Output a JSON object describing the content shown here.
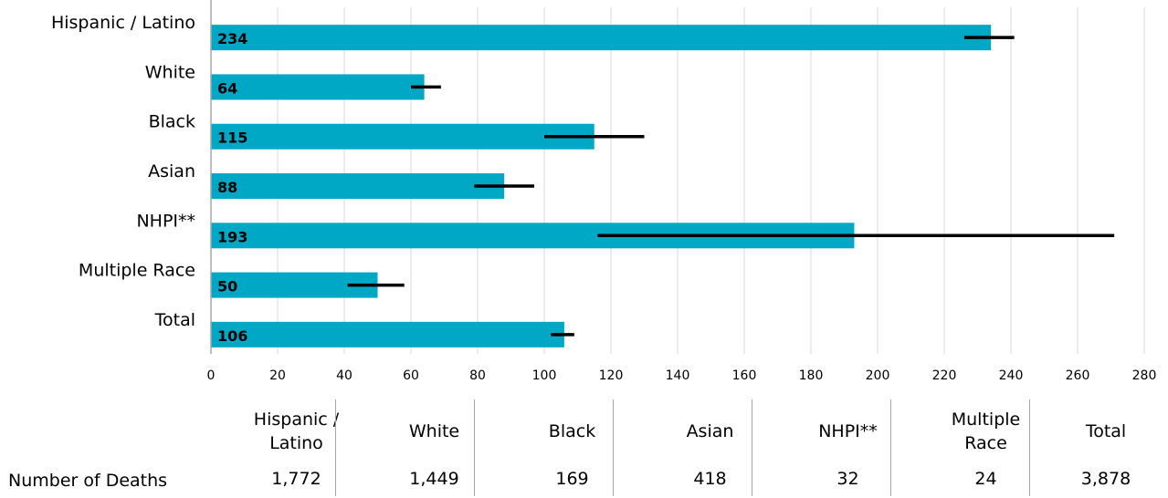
{
  "chart_data": {
    "type": "bar",
    "orientation": "horizontal",
    "categories": [
      "Hispanic / Latino",
      "White",
      "Black",
      "Asian",
      "NHPI**",
      "Multiple Race",
      "Total"
    ],
    "values": [
      234,
      64,
      115,
      88,
      193,
      50,
      106
    ],
    "data_labels": [
      "234",
      "64",
      "115",
      "88",
      "193",
      "50",
      "106"
    ],
    "error_bars": [
      {
        "low": 226,
        "high": 241
      },
      {
        "low": 60,
        "high": 69
      },
      {
        "low": 100,
        "high": 130
      },
      {
        "low": 79,
        "high": 97
      },
      {
        "low": 116,
        "high": 271
      },
      {
        "low": 41,
        "high": 58
      },
      {
        "low": 102,
        "high": 109
      }
    ],
    "xlim": [
      0,
      280
    ],
    "x_ticks": [
      "0",
      "20",
      "40",
      "60",
      "80",
      "100",
      "120",
      "140",
      "160",
      "180",
      "200",
      "220",
      "240",
      "260",
      "280"
    ],
    "grid": "vertical",
    "bar_color": "#00a8c6",
    "error_bar_color": "#000000",
    "gridline_color": "#d9d9d9",
    "axis_color": "#a6a6a6"
  },
  "table": {
    "row_label": "Number of Deaths",
    "columns": [
      {
        "header": "Hispanic / Latino",
        "value": "1,772"
      },
      {
        "header": "White",
        "value": "1,449"
      },
      {
        "header": "Black",
        "value": "169"
      },
      {
        "header": "Asian",
        "value": "418"
      },
      {
        "header": "NHPI**",
        "value": "32"
      },
      {
        "header": "Multiple Race",
        "value": "24"
      },
      {
        "header": "Total",
        "value": "3,878"
      }
    ]
  }
}
